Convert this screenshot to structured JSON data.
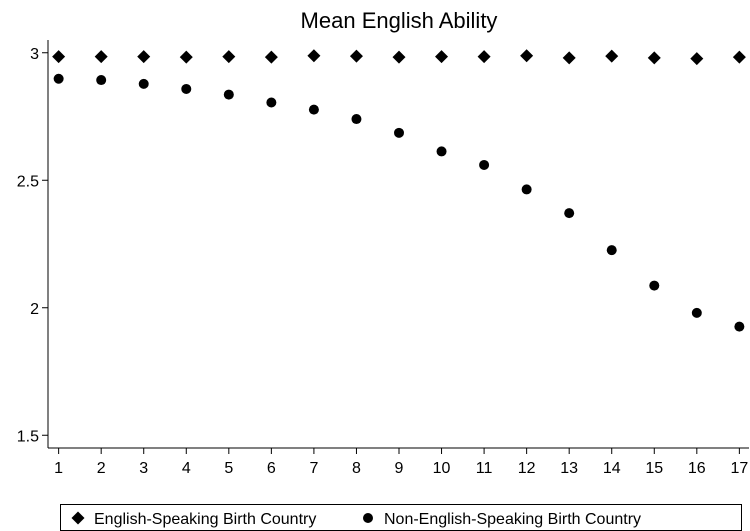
{
  "chart_data": {
    "type": "scatter",
    "title": "Mean English Ability",
    "xlabel": "",
    "ylabel": "",
    "x": [
      1,
      2,
      3,
      4,
      5,
      6,
      7,
      8,
      9,
      10,
      11,
      12,
      13,
      14,
      15,
      16,
      17
    ],
    "xlim": [
      0.75,
      17.25
    ],
    "ylim": [
      1.45,
      3.05
    ],
    "yticks": [
      1.5,
      2,
      2.5,
      3
    ],
    "ytick_labels": [
      "1.5",
      "2",
      "2.5",
      "3"
    ],
    "xtick_labels": [
      "1",
      "2",
      "3",
      "4",
      "5",
      "6",
      "7",
      "8",
      "9",
      "10",
      "11",
      "12",
      "13",
      "14",
      "15",
      "16",
      "17"
    ],
    "grid": false,
    "legend_position": "bottom",
    "series": [
      {
        "name": "English-Speaking Birth Country",
        "marker": "diamond",
        "color": "#000000",
        "values": [
          2.985,
          2.985,
          2.985,
          2.983,
          2.985,
          2.983,
          2.988,
          2.987,
          2.983,
          2.985,
          2.985,
          2.988,
          2.98,
          2.987,
          2.98,
          2.977,
          2.983
        ]
      },
      {
        "name": "Non-English-Speaking Birth Country",
        "marker": "circle",
        "color": "#000000",
        "values": [
          2.898,
          2.893,
          2.878,
          2.858,
          2.836,
          2.805,
          2.777,
          2.74,
          2.686,
          2.613,
          2.56,
          2.464,
          2.371,
          2.226,
          2.087,
          1.98,
          1.926
        ]
      }
    ]
  }
}
